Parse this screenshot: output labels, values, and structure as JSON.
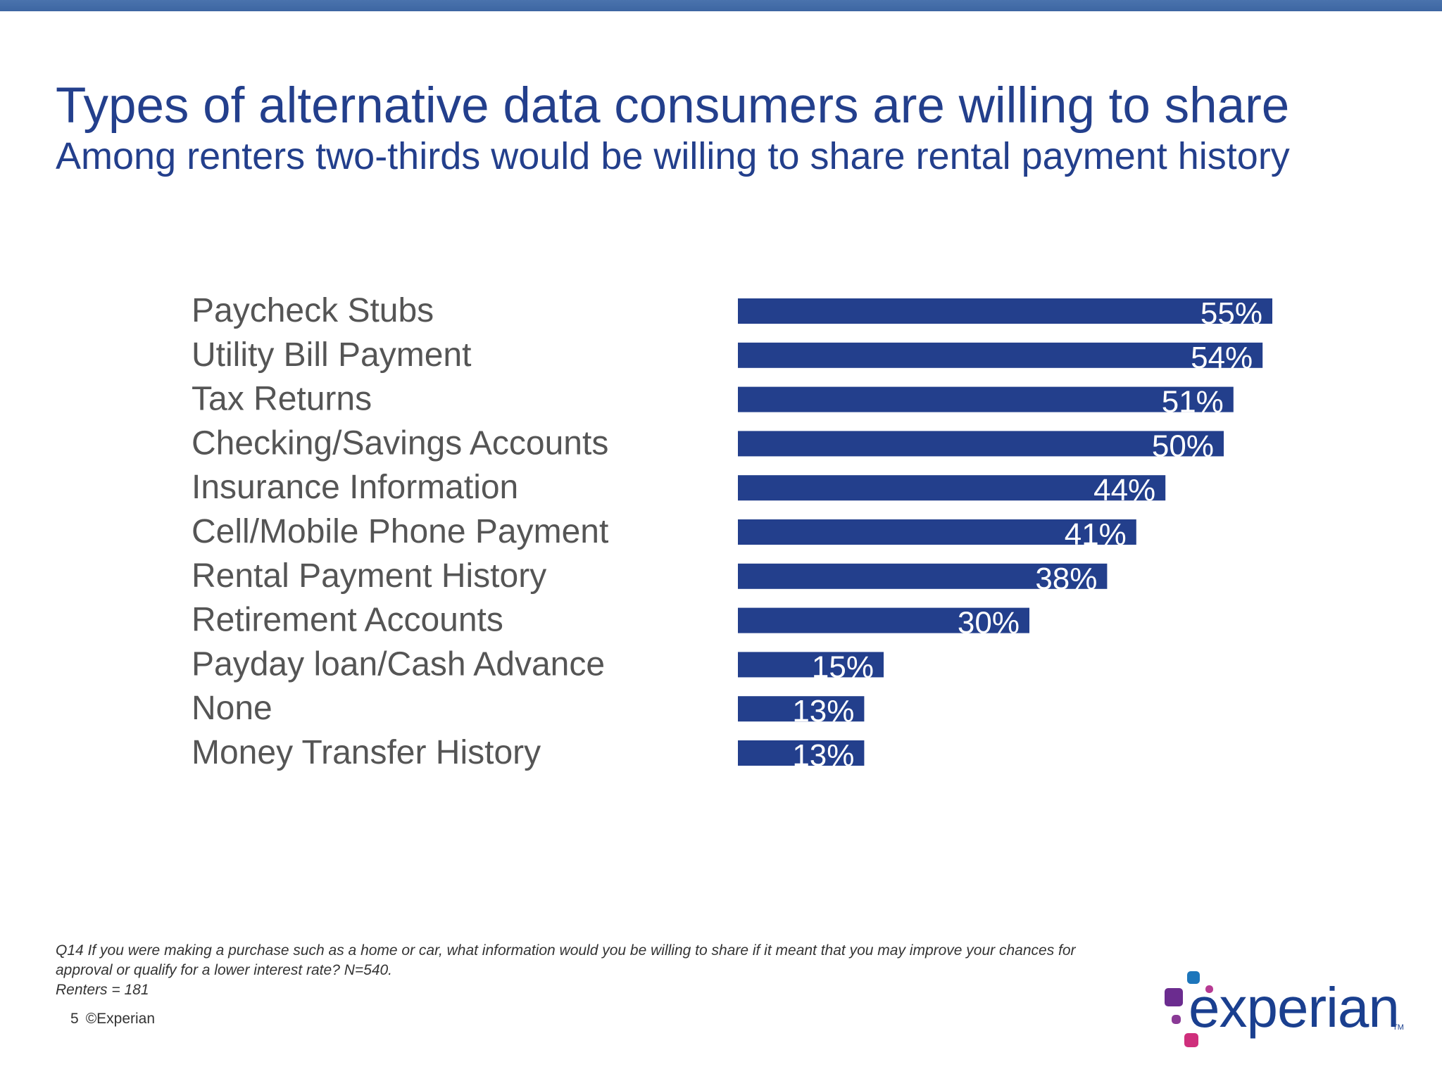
{
  "slide": {
    "title": "Types of alternative data consumers are willing to share",
    "subtitle": "Among renters two-thirds would be willing to share rental payment history",
    "footnote_lines": [
      "Q14 If you were making a purchase such as a home or car, what information would you be willing to share if it meant that you may improve your chances for",
      "approval or qualify for a lower interest rate? N=540.",
      "Renters = 181"
    ],
    "page_number": "5",
    "copyright": "©Experian",
    "logo_text": "experian",
    "logo_tm": "TM"
  },
  "colors": {
    "bar": "#233f8c",
    "title": "#233f8c",
    "top_bar": "#4a73ad",
    "logo_purple": "#6b2c8f",
    "logo_blue": "#1d76bb",
    "logo_magenta": "#cf2f7c",
    "logo_pink": "#b73a93"
  },
  "chart_data": {
    "type": "bar",
    "orientation": "horizontal",
    "categories": [
      "Paycheck Stubs",
      "Utility Bill Payment",
      "Tax Returns",
      "Checking/Savings Accounts",
      "Insurance Information",
      "Cell/Mobile Phone Payment",
      "Rental Payment History",
      "Retirement Accounts",
      "Payday loan/Cash Advance",
      "None",
      "Money Transfer History"
    ],
    "values": [
      55,
      54,
      51,
      50,
      44,
      41,
      38,
      30,
      15,
      13,
      13
    ],
    "value_labels": [
      "55%",
      "54%",
      "51%",
      "50%",
      "44%",
      "41%",
      "38%",
      "30%",
      "15%",
      "13%",
      "13%"
    ],
    "unit": "%",
    "xlim": [
      0,
      100
    ],
    "grid": false,
    "legend": "none"
  }
}
